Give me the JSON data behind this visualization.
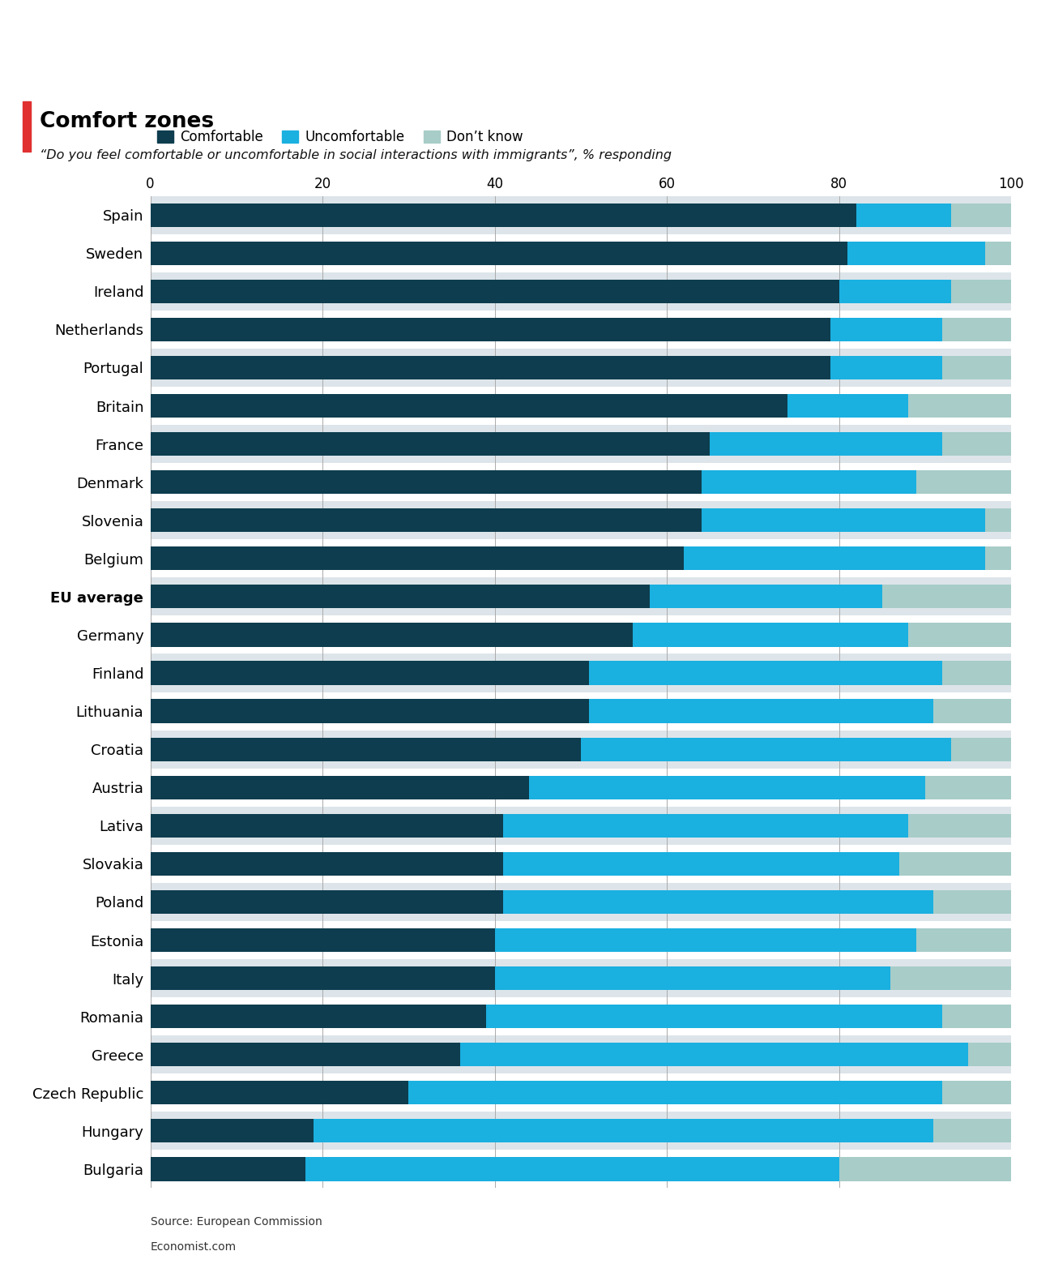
{
  "title": "Comfort zones",
  "subtitle": "“Do you feel comfortable or uncomfortable in social interactions with immigrants”, % responding",
  "source": "Source: European Commission",
  "footer": "Economist.com",
  "legend_labels": [
    "Comfortable",
    "Uncomfortable",
    "Don’t know"
  ],
  "colors": {
    "comfortable": "#0d3d4e",
    "uncomfortable": "#1ab0e0",
    "dont_know": "#a8ccc8"
  },
  "bg_even": "#dde5ea",
  "bg_odd": "#ffffff",
  "red_accent": "#e03030",
  "countries": [
    "Spain",
    "Sweden",
    "Ireland",
    "Netherlands",
    "Portugal",
    "Britain",
    "France",
    "Denmark",
    "Slovenia",
    "Belgium",
    "EU average",
    "Germany",
    "Finland",
    "Lithuania",
    "Croatia",
    "Austria",
    "Lativa",
    "Slovakia",
    "Poland",
    "Estonia",
    "Italy",
    "Romania",
    "Greece",
    "Czech Republic",
    "Hungary",
    "Bulgaria"
  ],
  "eu_average_index": 10,
  "comfortable": [
    82,
    81,
    80,
    79,
    79,
    74,
    65,
    64,
    64,
    62,
    58,
    56,
    51,
    51,
    50,
    44,
    41,
    41,
    41,
    40,
    40,
    39,
    36,
    30,
    19,
    18
  ],
  "uncomfortable": [
    11,
    16,
    13,
    13,
    13,
    14,
    27,
    25,
    33,
    35,
    27,
    32,
    41,
    40,
    43,
    46,
    47,
    46,
    50,
    49,
    46,
    53,
    59,
    62,
    72,
    62
  ],
  "dont_know": [
    7,
    3,
    7,
    8,
    8,
    12,
    8,
    11,
    3,
    3,
    15,
    12,
    8,
    9,
    7,
    10,
    12,
    13,
    9,
    11,
    14,
    8,
    5,
    8,
    9,
    20
  ]
}
